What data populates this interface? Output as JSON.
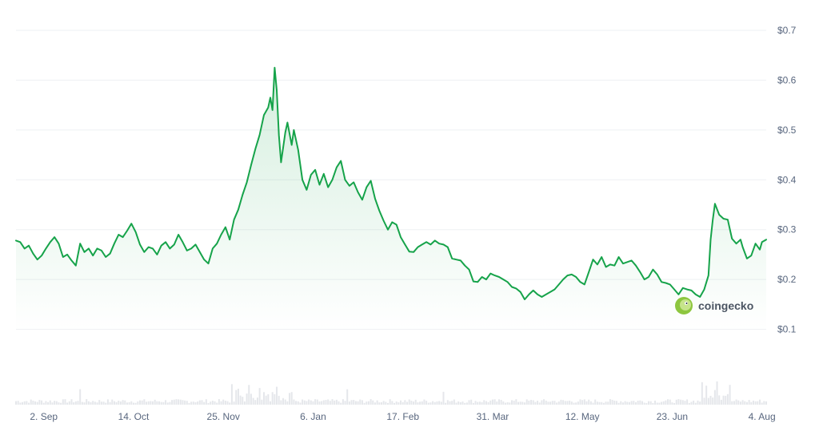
{
  "chart_data": {
    "type": "area",
    "title": "",
    "xlabel": "",
    "ylabel": "",
    "y_unit_prefix": "$",
    "ylim": [
      0.0,
      0.7
    ],
    "y_ticks": [
      {
        "value": 0.7,
        "label": "$0.7"
      },
      {
        "value": 0.6,
        "label": "$0.6"
      },
      {
        "value": 0.5,
        "label": "$0.5"
      },
      {
        "value": 0.4,
        "label": "$0.4"
      },
      {
        "value": 0.3,
        "label": "$0.3"
      },
      {
        "value": 0.2,
        "label": "$0.2"
      },
      {
        "value": 0.1,
        "label": "$0.1"
      }
    ],
    "x_ticks": [
      {
        "day": 13,
        "label": "2. Sep"
      },
      {
        "day": 55,
        "label": "14. Oct"
      },
      {
        "day": 97,
        "label": "25. Nov"
      },
      {
        "day": 139,
        "label": "6. Jan"
      },
      {
        "day": 181,
        "label": "17. Feb"
      },
      {
        "day": 223,
        "label": "31. Mar"
      },
      {
        "day": 265,
        "label": "12. May"
      },
      {
        "day": 307,
        "label": "23. Jun"
      },
      {
        "day": 349,
        "label": "4. Aug"
      }
    ],
    "x_range": [
      0,
      351
    ],
    "grid": true,
    "line_color": "#16a34a",
    "fill_color": "#16a34a",
    "volume_color": "#e5e7eb",
    "series": [
      {
        "name": "",
        "points": [
          [
            0,
            0.278
          ],
          [
            2,
            0.275
          ],
          [
            4,
            0.262
          ],
          [
            6,
            0.268
          ],
          [
            8,
            0.252
          ],
          [
            10,
            0.24
          ],
          [
            12,
            0.248
          ],
          [
            14,
            0.262
          ],
          [
            16,
            0.275
          ],
          [
            18,
            0.285
          ],
          [
            20,
            0.272
          ],
          [
            22,
            0.245
          ],
          [
            24,
            0.25
          ],
          [
            26,
            0.238
          ],
          [
            28,
            0.228
          ],
          [
            30,
            0.272
          ],
          [
            32,
            0.255
          ],
          [
            34,
            0.262
          ],
          [
            36,
            0.248
          ],
          [
            38,
            0.262
          ],
          [
            40,
            0.258
          ],
          [
            42,
            0.245
          ],
          [
            44,
            0.252
          ],
          [
            46,
            0.272
          ],
          [
            48,
            0.29
          ],
          [
            50,
            0.285
          ],
          [
            52,
            0.298
          ],
          [
            54,
            0.312
          ],
          [
            56,
            0.295
          ],
          [
            58,
            0.27
          ],
          [
            60,
            0.255
          ],
          [
            62,
            0.265
          ],
          [
            64,
            0.262
          ],
          [
            66,
            0.25
          ],
          [
            68,
            0.268
          ],
          [
            70,
            0.275
          ],
          [
            72,
            0.262
          ],
          [
            74,
            0.27
          ],
          [
            76,
            0.29
          ],
          [
            78,
            0.275
          ],
          [
            80,
            0.258
          ],
          [
            82,
            0.262
          ],
          [
            84,
            0.27
          ],
          [
            86,
            0.255
          ],
          [
            88,
            0.24
          ],
          [
            90,
            0.232
          ],
          [
            92,
            0.262
          ],
          [
            94,
            0.272
          ],
          [
            96,
            0.29
          ],
          [
            98,
            0.305
          ],
          [
            100,
            0.28
          ],
          [
            102,
            0.32
          ],
          [
            104,
            0.34
          ],
          [
            106,
            0.37
          ],
          [
            108,
            0.395
          ],
          [
            110,
            0.43
          ],
          [
            112,
            0.462
          ],
          [
            114,
            0.49
          ],
          [
            116,
            0.53
          ],
          [
            118,
            0.545
          ],
          [
            119,
            0.565
          ],
          [
            120,
            0.54
          ],
          [
            121,
            0.625
          ],
          [
            122,
            0.58
          ],
          [
            123,
            0.49
          ],
          [
            124,
            0.435
          ],
          [
            126,
            0.495
          ],
          [
            127,
            0.515
          ],
          [
            129,
            0.47
          ],
          [
            130,
            0.5
          ],
          [
            132,
            0.46
          ],
          [
            134,
            0.4
          ],
          [
            136,
            0.38
          ],
          [
            138,
            0.41
          ],
          [
            140,
            0.42
          ],
          [
            142,
            0.39
          ],
          [
            144,
            0.412
          ],
          [
            146,
            0.385
          ],
          [
            148,
            0.4
          ],
          [
            150,
            0.425
          ],
          [
            152,
            0.438
          ],
          [
            154,
            0.4
          ],
          [
            156,
            0.388
          ],
          [
            158,
            0.395
          ],
          [
            160,
            0.375
          ],
          [
            162,
            0.36
          ],
          [
            164,
            0.385
          ],
          [
            166,
            0.398
          ],
          [
            168,
            0.362
          ],
          [
            170,
            0.338
          ],
          [
            172,
            0.318
          ],
          [
            174,
            0.3
          ],
          [
            176,
            0.315
          ],
          [
            178,
            0.31
          ],
          [
            180,
            0.285
          ],
          [
            182,
            0.27
          ],
          [
            184,
            0.256
          ],
          [
            186,
            0.255
          ],
          [
            188,
            0.265
          ],
          [
            190,
            0.27
          ],
          [
            192,
            0.275
          ],
          [
            194,
            0.27
          ],
          [
            196,
            0.278
          ],
          [
            198,
            0.272
          ],
          [
            200,
            0.27
          ],
          [
            202,
            0.265
          ],
          [
            204,
            0.242
          ],
          [
            206,
            0.24
          ],
          [
            208,
            0.238
          ],
          [
            210,
            0.228
          ],
          [
            212,
            0.22
          ],
          [
            214,
            0.196
          ],
          [
            216,
            0.195
          ],
          [
            218,
            0.205
          ],
          [
            220,
            0.2
          ],
          [
            222,
            0.212
          ],
          [
            224,
            0.208
          ],
          [
            226,
            0.205
          ],
          [
            228,
            0.2
          ],
          [
            230,
            0.195
          ],
          [
            232,
            0.185
          ],
          [
            234,
            0.182
          ],
          [
            236,
            0.175
          ],
          [
            238,
            0.16
          ],
          [
            240,
            0.17
          ],
          [
            242,
            0.178
          ],
          [
            244,
            0.17
          ],
          [
            246,
            0.165
          ],
          [
            248,
            0.17
          ],
          [
            250,
            0.175
          ],
          [
            252,
            0.18
          ],
          [
            254,
            0.19
          ],
          [
            256,
            0.2
          ],
          [
            258,
            0.208
          ],
          [
            260,
            0.21
          ],
          [
            262,
            0.205
          ],
          [
            264,
            0.195
          ],
          [
            266,
            0.19
          ],
          [
            268,
            0.215
          ],
          [
            270,
            0.24
          ],
          [
            272,
            0.23
          ],
          [
            274,
            0.245
          ],
          [
            276,
            0.225
          ],
          [
            278,
            0.23
          ],
          [
            280,
            0.228
          ],
          [
            282,
            0.245
          ],
          [
            284,
            0.232
          ],
          [
            286,
            0.235
          ],
          [
            288,
            0.238
          ],
          [
            290,
            0.228
          ],
          [
            292,
            0.215
          ],
          [
            294,
            0.2
          ],
          [
            296,
            0.205
          ],
          [
            298,
            0.22
          ],
          [
            300,
            0.21
          ],
          [
            302,
            0.195
          ],
          [
            304,
            0.193
          ],
          [
            306,
            0.19
          ],
          [
            308,
            0.18
          ],
          [
            310,
            0.17
          ],
          [
            312,
            0.183
          ],
          [
            314,
            0.18
          ],
          [
            316,
            0.178
          ],
          [
            318,
            0.17
          ],
          [
            320,
            0.165
          ],
          [
            322,
            0.18
          ],
          [
            324,
            0.208
          ],
          [
            325,
            0.28
          ],
          [
            326,
            0.32
          ],
          [
            327,
            0.352
          ],
          [
            329,
            0.33
          ],
          [
            331,
            0.322
          ],
          [
            333,
            0.32
          ],
          [
            335,
            0.282
          ],
          [
            337,
            0.272
          ],
          [
            339,
            0.28
          ],
          [
            340,
            0.265
          ],
          [
            342,
            0.242
          ],
          [
            344,
            0.248
          ],
          [
            346,
            0.272
          ],
          [
            348,
            0.26
          ],
          [
            349,
            0.275
          ],
          [
            351,
            0.28
          ]
        ]
      }
    ],
    "watermark": "coingecko"
  }
}
